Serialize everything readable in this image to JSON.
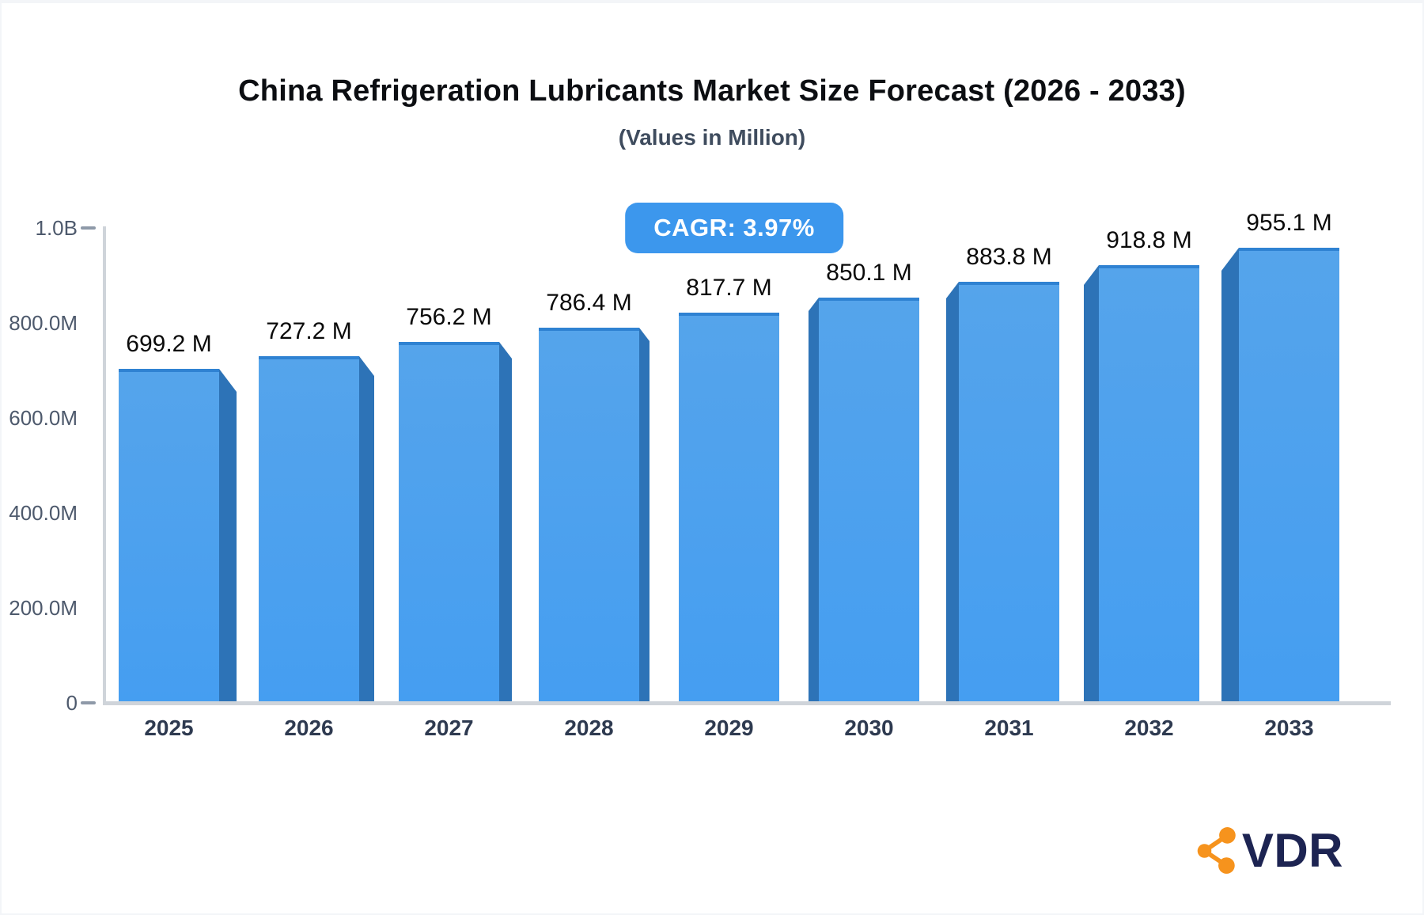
{
  "chart_data": {
    "type": "bar",
    "title": "China Refrigeration Lubricants Market Size Forecast (2026 - 2033)",
    "subtitle": "(Values in Million)",
    "annotation": "CAGR: 3.97%",
    "categories": [
      "2025",
      "2026",
      "2027",
      "2028",
      "2029",
      "2030",
      "2031",
      "2032",
      "2033"
    ],
    "values": [
      699.2,
      727.2,
      756.2,
      786.4,
      817.7,
      850.1,
      883.8,
      918.8,
      955.1
    ],
    "value_labels": [
      "699.2 M",
      "727.2 M",
      "756.2 M",
      "786.4 M",
      "817.7 M",
      "850.1 M",
      "883.8 M",
      "918.8 M",
      "955.1 M"
    ],
    "xlabel": "",
    "ylabel": "",
    "ylim": [
      0,
      1000
    ],
    "yticks": [
      {
        "label": "0",
        "value": 0,
        "tick": true
      },
      {
        "label": "200.0M",
        "value": 200,
        "tick": false
      },
      {
        "label": "400.0M",
        "value": 400,
        "tick": false
      },
      {
        "label": "600.0M",
        "value": 600,
        "tick": false
      },
      {
        "label": "800.0M",
        "value": 800,
        "tick": false
      },
      {
        "label": "1.0B",
        "value": 1000,
        "tick": true
      }
    ],
    "grid": false,
    "legend": false,
    "bar_style": "pseudo-3d, side panels face chart center"
  },
  "logo": {
    "text": "VDR"
  },
  "colors": {
    "title": "#0c0e12",
    "subtitle": "#3f4c5e",
    "badge_bg": "#3c97ed",
    "badge_text": "#ffffff",
    "bar_face_top": "#55a4eb",
    "bar_face_bottom": "#459ef1",
    "bar_top_edge": "#2f82d2",
    "bar_side": "#2d73b7",
    "axis_line": "#cfd4da",
    "tick": "#8e99a8",
    "y_label": "#4d596c",
    "x_label": "#2e3a50",
    "value_label": "#0a0a0a",
    "logo_orange": "#f6931d",
    "logo_navy": "#1d2452"
  }
}
